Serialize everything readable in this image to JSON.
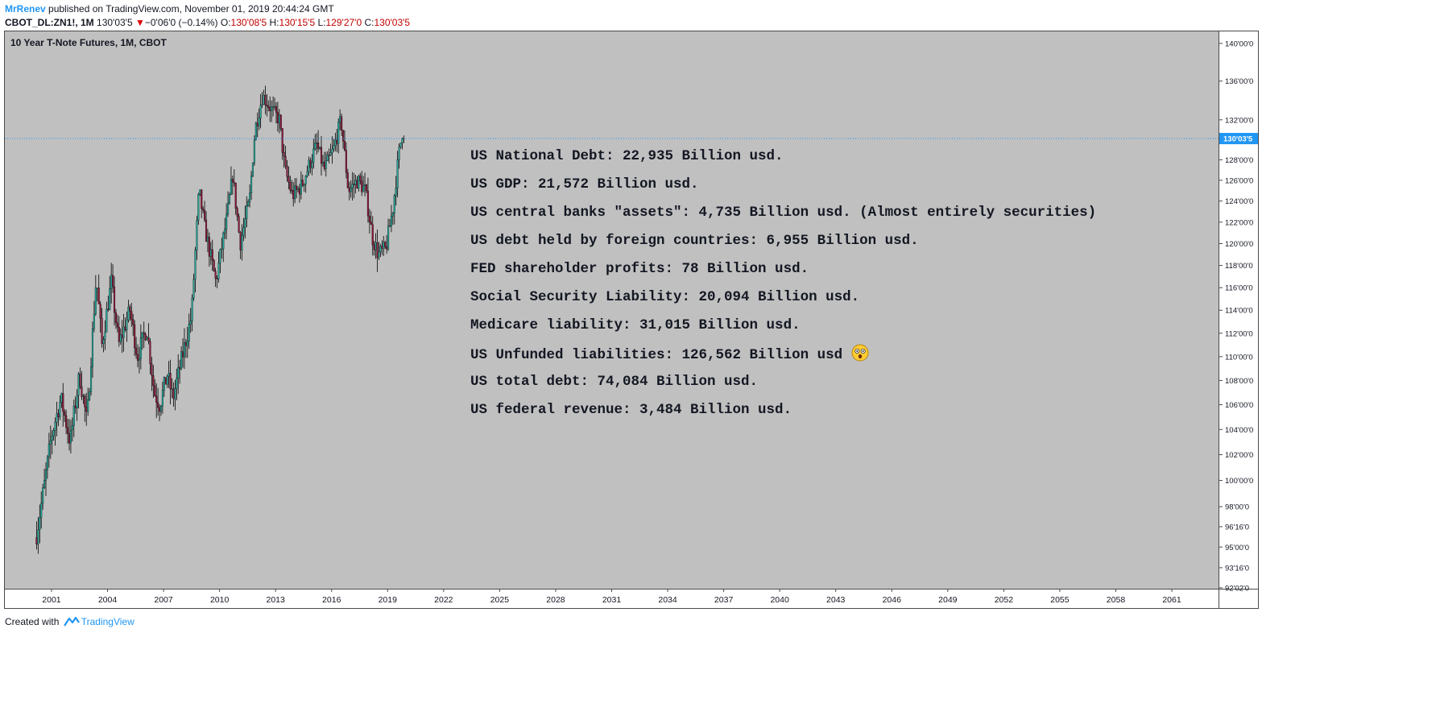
{
  "header": {
    "author": "MrRenev",
    "published_text": " published on TradingView.com, November 01, 2019 20:44:24 GMT",
    "symbol": "CBOT_DL:ZN1!, 1M",
    "last": "130'03'5",
    "change": "−0'06'0 (−0.14%)",
    "o_label": "O:",
    "o_value": "130'08'5",
    "h_label": "H:",
    "h_value": "130'15'5",
    "l_label": "L:",
    "l_value": "129'27'0",
    "c_label": "C:",
    "c_value": "130'03'5"
  },
  "chart_title": "10 Year T-Note Futures, 1M, CBOT",
  "notes": [
    "US National Debt: 22,935 Billion usd.",
    "US GDP: 21,572 Billion usd.",
    "US central banks \"assets\": 4,735 Billion usd. (Almost entirely securities)",
    "US debt held by foreign countries: 6,955 Billion usd.",
    "FED shareholder profits: 78 Billion usd.",
    "Social Security Liability: 20,094 Billion usd.",
    "Medicare liability: 31,015 Billion usd.",
    "US Unfunded liabilities: 126,562 Billion usd",
    "US total debt: 74,084 Billion usd.",
    "US federal revenue: 3,484 Billion usd."
  ],
  "emoji_icon": "astonished-face-icon",
  "footer": {
    "created_with": "Created with",
    "brand": "TradingView"
  },
  "colors": {
    "background": "#c0c0c0",
    "up_candle": "#26a69a",
    "down_candle": "#8b1a3a",
    "wick": "#000000",
    "price_line": "#2196f3",
    "price_label_bg": "#2196f3"
  },
  "chart_data": {
    "type": "candlestick",
    "title": "10 Year T-Note Futures, 1M, CBOT",
    "x_tick_labels": [
      "2001",
      "2004",
      "2007",
      "2010",
      "2013",
      "2016",
      "2019",
      "2022",
      "2025",
      "2028",
      "2031",
      "2034",
      "2037",
      "2040",
      "2043",
      "2046",
      "2049",
      "2052",
      "2055",
      "2058",
      "2061"
    ],
    "x_range": [
      1998.5,
      2063.5
    ],
    "y_tick_labels": [
      "140'00'0",
      "136'00'0",
      "132'00'0",
      "128'00'0",
      "126'00'0",
      "124'00'0",
      "122'00'0",
      "120'00'0",
      "118'00'0",
      "116'00'0",
      "114'00'0",
      "112'00'0",
      "110'00'0",
      "108'00'0",
      "106'00'0",
      "104'00'0",
      "102'00'0",
      "100'00'0",
      "98'00'0",
      "96'16'0",
      "95'00'0",
      "93'16'0",
      "92'02'0"
    ],
    "y_scale": "log",
    "y_range": [
      92,
      141.3
    ],
    "last_price_label": "130'03'5",
    "last_price": 130.11,
    "grid": false,
    "close_anchors": [
      [
        2000.2,
        96.0
      ],
      [
        2000.6,
        99.5
      ],
      [
        2001.0,
        103.5
      ],
      [
        2001.5,
        106.5
      ],
      [
        2002.0,
        103.0
      ],
      [
        2002.5,
        108.5
      ],
      [
        2002.9,
        104.5
      ],
      [
        2003.4,
        117.0
      ],
      [
        2003.7,
        111.0
      ],
      [
        2004.2,
        116.5
      ],
      [
        2004.6,
        111.0
      ],
      [
        2005.2,
        114.0
      ],
      [
        2005.6,
        110.0
      ],
      [
        2006.1,
        112.5
      ],
      [
        2006.5,
        107.0
      ],
      [
        2006.8,
        106.0
      ],
      [
        2007.2,
        108.5
      ],
      [
        2007.5,
        106.5
      ],
      [
        2008.0,
        110.0
      ],
      [
        2008.5,
        113.5
      ],
      [
        2008.9,
        125.0
      ],
      [
        2009.2,
        121.5
      ],
      [
        2009.8,
        116.5
      ],
      [
        2010.4,
        122.5
      ],
      [
        2010.7,
        126.5
      ],
      [
        2011.1,
        120.0
      ],
      [
        2011.6,
        124.0
      ],
      [
        2011.9,
        131.0
      ],
      [
        2012.3,
        134.5
      ],
      [
        2012.8,
        133.0
      ],
      [
        2013.2,
        132.0
      ],
      [
        2013.5,
        127.0
      ],
      [
        2013.9,
        124.5
      ],
      [
        2014.4,
        125.5
      ],
      [
        2014.9,
        128.0
      ],
      [
        2015.2,
        129.5
      ],
      [
        2015.6,
        127.0
      ],
      [
        2016.1,
        129.0
      ],
      [
        2016.5,
        132.0
      ],
      [
        2016.9,
        125.0
      ],
      [
        2017.4,
        126.0
      ],
      [
        2017.8,
        125.0
      ],
      [
        2018.2,
        120.5
      ],
      [
        2018.5,
        119.0
      ],
      [
        2018.9,
        119.5
      ],
      [
        2019.3,
        123.5
      ],
      [
        2019.6,
        128.5
      ],
      [
        2019.8,
        131.0
      ],
      [
        2019.9,
        130.11
      ]
    ]
  }
}
